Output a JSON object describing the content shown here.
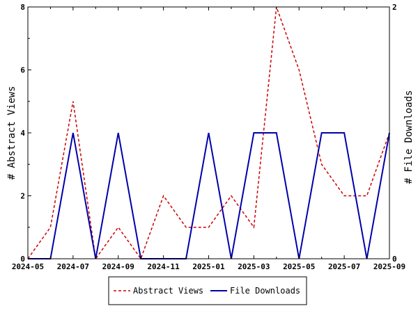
{
  "chart_data": {
    "type": "line",
    "x": [
      "2024-05",
      "2024-06",
      "2024-07",
      "2024-08",
      "2024-09",
      "2024-10",
      "2024-11",
      "2024-12",
      "2025-01",
      "2025-02",
      "2025-03",
      "2025-04",
      "2025-05",
      "2025-06",
      "2025-07",
      "2025-08",
      "2025-09"
    ],
    "x_tick_labels": [
      "2024-05",
      "2024-07",
      "2024-09",
      "2024-11",
      "2025-01",
      "2025-03",
      "2025-05",
      "2025-07",
      "2025-09"
    ],
    "ylabel_left": "# Abstract Views",
    "ylabel_right": "# File Downloads",
    "ylim_left": [
      0,
      8
    ],
    "ylim_right": [
      0,
      2
    ],
    "y_ticks_left": [
      "0",
      "2",
      "4",
      "6",
      "8"
    ],
    "y_ticks_right": [
      "0",
      "2"
    ],
    "grid": false,
    "legend_position": "bottom-center",
    "series": [
      {
        "name": "Abstract Views",
        "axis": "left",
        "color": "#cc0000",
        "style": "dashed",
        "values": [
          0,
          1,
          5,
          0,
          1,
          0,
          2,
          1,
          1,
          2,
          1,
          8,
          6,
          3,
          2,
          2,
          4
        ]
      },
      {
        "name": "File Downloads",
        "axis": "right",
        "color": "#0000aa",
        "style": "solid",
        "values": [
          0,
          0,
          1,
          0,
          1,
          0,
          0,
          0,
          1,
          0,
          1,
          1,
          0,
          1,
          1,
          0,
          1
        ]
      }
    ]
  }
}
